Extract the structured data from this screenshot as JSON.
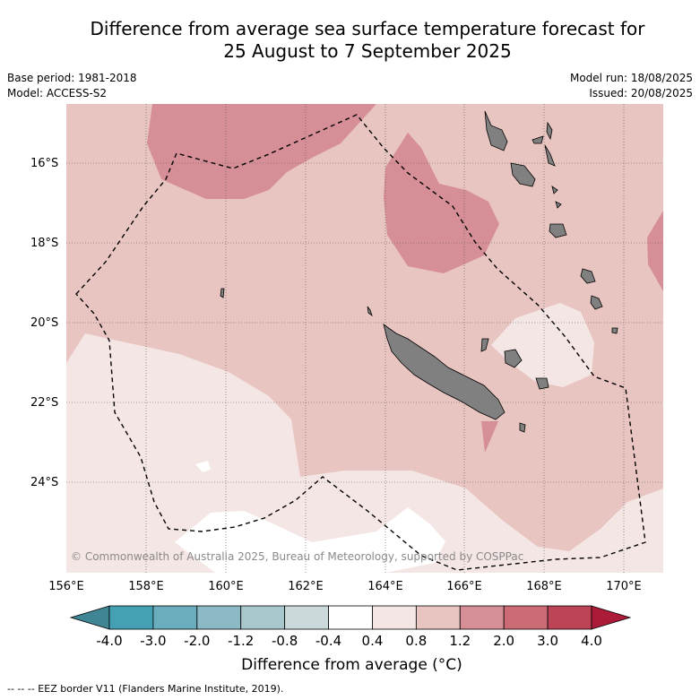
{
  "title_line1": "Difference from average sea surface temperature forecast for",
  "title_line2": "25 August to 7 September 2025",
  "meta": {
    "base_period": "Base period: 1981-2018",
    "model": "Model: ACCESS-S2",
    "model_run": "Model run: 18/08/2025",
    "issued": "Issued: 20/08/2025"
  },
  "latitude_labels": [
    "16°S",
    "18°S",
    "20°S",
    "22°S",
    "24°S"
  ],
  "longitude_labels": [
    "156°E",
    "158°E",
    "160°E",
    "162°E",
    "164°E",
    "166°E",
    "168°E",
    "170°E"
  ],
  "copyright": "© Commonwealth of Australia 2025, Bureau of Meteorology, supported by COSPPac",
  "colorbar": {
    "ticks": [
      "-4.0",
      "-3.0",
      "-2.0",
      "-1.2",
      "-0.8",
      "-0.4",
      "0.4",
      "0.8",
      "1.2",
      "2.0",
      "3.0",
      "4.0"
    ],
    "colors": [
      "#44a1b4",
      "#6aadbd",
      "#8bb9c5",
      "#a8c7cc",
      "#ccd9da",
      "#ffffff",
      "#f4e6e4",
      "#e8c5c0",
      "#d68f96",
      "#cc6a76",
      "#bd4356"
    ],
    "under_color": "#3f8593",
    "over_color": "#ad1b3a",
    "title": "Difference from average ($^\\circ$C)",
    "title_display": "Difference from average (°C)"
  },
  "legend_footer": "--  --  -- EEZ border V11 (Flanders Marine Institute, 2019).",
  "map_colors": {
    "anomaly_0_4_to_0_8": "#f4e6e4",
    "anomaly_0_8_to_1_2": "#e8c5c0",
    "anomaly_1_2_to_2_0": "#d68f96",
    "anomaly_neutral": "#ffffff",
    "land": "#808080"
  }
}
